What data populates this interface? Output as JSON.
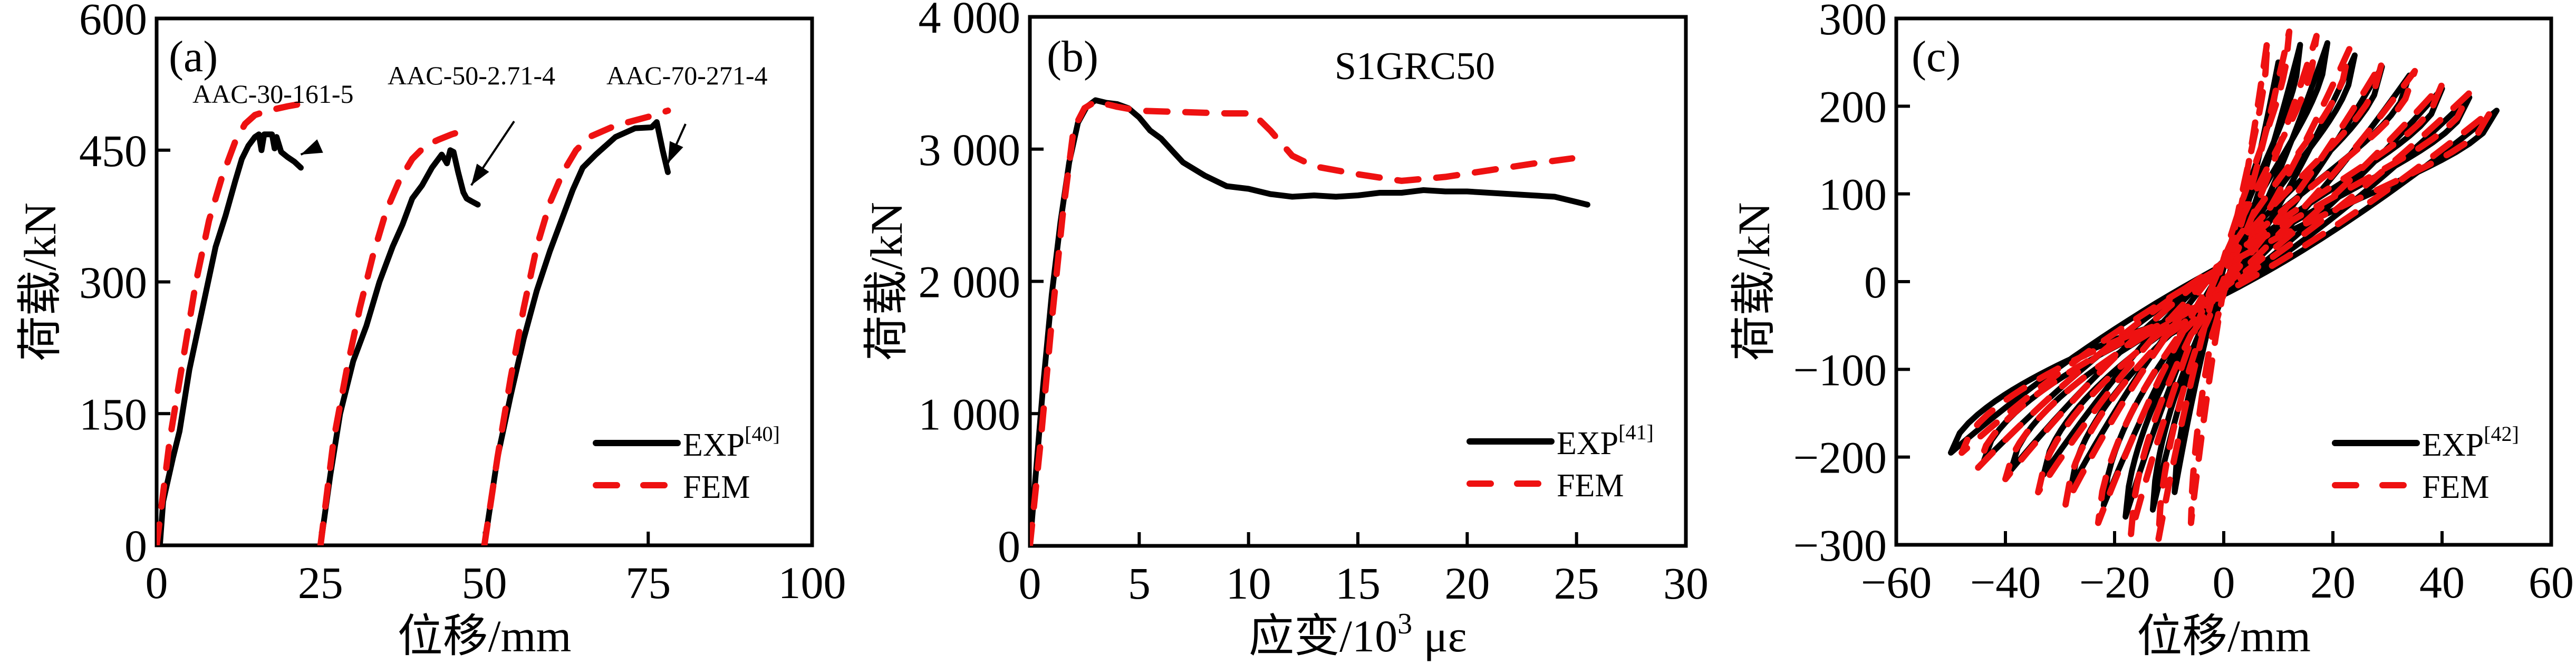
{
  "figure": {
    "panels": [
      "a",
      "b",
      "c"
    ]
  },
  "colors": {
    "exp": "#000000",
    "fem": "#ee1111",
    "axis": "#000000"
  },
  "chart_data": [
    {
      "id": "a",
      "type": "line",
      "panel_tag": "(a)",
      "title": "",
      "xlabel": "位移/mm",
      "ylabel": "荷载/kN",
      "xlim": [
        0,
        100
      ],
      "ylim": [
        0,
        600
      ],
      "xticks": [
        0,
        25,
        50,
        75,
        100
      ],
      "xtick_labels": [
        "0",
        "25",
        "50",
        "75",
        "100"
      ],
      "yticks": [
        0,
        150,
        300,
        450,
        600
      ],
      "ytick_labels": [
        "0",
        "150",
        "300",
        "450",
        "600"
      ],
      "grid": false,
      "legend": {
        "placement": "bottom-right",
        "entries": [
          {
            "label": "EXP",
            "superscript": "[40]",
            "style": "solid"
          },
          {
            "label": "FEM",
            "superscript": "",
            "style": "dashed"
          }
        ]
      },
      "annotations": [
        {
          "text": "AAC-30-161-5",
          "points_to": [
            22,
            445
          ]
        },
        {
          "text": "AAC-50-2.71-4",
          "points_to": [
            48,
            410
          ]
        },
        {
          "text": "AAC-70-271-4",
          "points_to": [
            78,
            435
          ]
        }
      ],
      "series": [
        {
          "name": "EXP",
          "specimen": "AAC-30-161-5",
          "style": "solid",
          "x": [
            0.5,
            1.0,
            2.5,
            3.5,
            5,
            7,
            9,
            10.5,
            12,
            13,
            14,
            15,
            15.6,
            16,
            16.4,
            17,
            17.6,
            18,
            18.3,
            19,
            20,
            21,
            22
          ],
          "y": [
            0,
            50,
            100,
            130,
            200,
            270,
            340,
            375,
            415,
            440,
            455,
            465,
            468,
            450,
            468,
            468,
            468,
            452,
            465,
            448,
            442,
            437,
            430
          ]
        },
        {
          "name": "FEM",
          "specimen": "AAC-30-161-5",
          "style": "dashed",
          "x": [
            0,
            2,
            4,
            6,
            8,
            10,
            12,
            13.5,
            15,
            17,
            20,
            21.5
          ],
          "y": [
            0,
            120,
            210,
            300,
            370,
            420,
            460,
            480,
            490,
            495,
            500,
            502
          ]
        },
        {
          "name": "EXP",
          "specimen": "AAC-50-2.71-4",
          "style": "solid",
          "x": [
            25,
            26.5,
            28,
            30,
            32,
            34,
            36,
            37.5,
            39,
            40.5,
            42,
            43.5,
            44.3,
            44.8,
            45.3,
            46,
            46.8,
            47.3,
            48,
            49
          ],
          "y": [
            0,
            80,
            150,
            210,
            250,
            300,
            340,
            365,
            395,
            410,
            430,
            445,
            435,
            450,
            448,
            425,
            402,
            395,
            392,
            388
          ]
        },
        {
          "name": "FEM",
          "specimen": "AAC-50-2.71-4",
          "style": "dashed",
          "x": [
            25,
            27,
            29,
            31,
            33,
            35,
            37,
            39,
            41,
            43,
            45,
            48
          ],
          "y": [
            0,
            120,
            200,
            270,
            330,
            380,
            415,
            440,
            455,
            462,
            468,
            475
          ]
        },
        {
          "name": "EXP",
          "specimen": "AAC-70-271-4",
          "style": "solid",
          "x": [
            50,
            52,
            54,
            56,
            58,
            60,
            62,
            63.5,
            65,
            67,
            70,
            73,
            75.5,
            76.3,
            77.2,
            78
          ],
          "y": [
            0,
            100,
            170,
            235,
            290,
            335,
            375,
            405,
            430,
            445,
            465,
            475,
            476,
            482,
            450,
            425
          ]
        },
        {
          "name": "FEM",
          "specimen": "AAC-70-271-4",
          "style": "dashed",
          "x": [
            50,
            52,
            54,
            56,
            58,
            60,
            62,
            64,
            66,
            70,
            75,
            78
          ],
          "y": [
            0,
            100,
            190,
            270,
            340,
            390,
            425,
            450,
            465,
            478,
            488,
            495
          ]
        }
      ]
    },
    {
      "id": "b",
      "type": "line",
      "panel_tag": "(b)",
      "title": "S1GRC50",
      "xlabel": "应变/10³ με",
      "xlabel_parts": {
        "main": "应变/10",
        "sup": "3",
        "unit": " με"
      },
      "ylabel": "荷载/kN",
      "xlim": [
        0,
        30
      ],
      "ylim": [
        0,
        4000
      ],
      "xticks": [
        0,
        5,
        10,
        15,
        20,
        25,
        30
      ],
      "xtick_labels": [
        "0",
        "5",
        "10",
        "15",
        "20",
        "25",
        "30"
      ],
      "yticks": [
        0,
        1000,
        2000,
        3000,
        4000
      ],
      "ytick_labels": [
        "0",
        "1 000",
        "2 000",
        "3 000",
        "4 000"
      ],
      "grid": false,
      "legend": {
        "placement": "bottom-right",
        "entries": [
          {
            "label": "EXP",
            "superscript": "[41]",
            "style": "solid"
          },
          {
            "label": "FEM",
            "superscript": "",
            "style": "dashed"
          }
        ]
      },
      "series": [
        {
          "name": "EXP",
          "style": "solid",
          "x": [
            0,
            0.3,
            0.6,
            1.0,
            1.4,
            1.8,
            2.2,
            2.6,
            3.0,
            3.5,
            4.0,
            4.5,
            5.0,
            5.5,
            6.0,
            6.5,
            7.0,
            8.0,
            9.0,
            10.0,
            11.0,
            12.0,
            13.0,
            14.0,
            15.0,
            16.0,
            17.0,
            18.0,
            19.0,
            20.0,
            21.0,
            22.0,
            23.0,
            24.0,
            25.0,
            25.5
          ],
          "y": [
            0,
            600,
            1200,
            1900,
            2450,
            2900,
            3200,
            3320,
            3370,
            3350,
            3340,
            3310,
            3240,
            3140,
            3080,
            2990,
            2900,
            2800,
            2720,
            2700,
            2660,
            2640,
            2650,
            2640,
            2650,
            2670,
            2670,
            2690,
            2680,
            2680,
            2670,
            2660,
            2650,
            2640,
            2600,
            2580
          ]
        },
        {
          "name": "FEM",
          "style": "dashed",
          "x": [
            0,
            0.5,
            1.0,
            1.5,
            2.0,
            2.5,
            3.0,
            4.0,
            5.0,
            7.0,
            9.0,
            10.2,
            11.0,
            12.0,
            13.0,
            15.0,
            17.0,
            19.0,
            21.0,
            23.0,
            24.8
          ],
          "y": [
            0,
            800,
            1700,
            2500,
            3150,
            3310,
            3360,
            3320,
            3290,
            3280,
            3270,
            3270,
            3140,
            2950,
            2870,
            2810,
            2760,
            2790,
            2840,
            2890,
            2930
          ]
        }
      ]
    },
    {
      "id": "c",
      "type": "line",
      "panel_tag": "(c)",
      "title": "",
      "xlabel": "位移/mm",
      "ylabel": "荷载/kN",
      "xlim": [
        -60,
        60
      ],
      "ylim": [
        -300,
        300
      ],
      "xticks": [
        -60,
        -40,
        -20,
        0,
        20,
        40,
        60
      ],
      "xtick_labels": [
        "−60",
        "−40",
        "−20",
        "0",
        "20",
        "40",
        "60"
      ],
      "yticks": [
        -300,
        -200,
        -100,
        0,
        100,
        200,
        300
      ],
      "ytick_labels": [
        "−300",
        "−200",
        "−100",
        "0",
        "100",
        "200",
        "300"
      ],
      "grid": false,
      "legend": {
        "placement": "bottom-right",
        "entries": [
          {
            "label": "EXP",
            "superscript": "[42]",
            "style": "solid"
          },
          {
            "label": "FEM",
            "superscript": "",
            "style": "dashed"
          }
        ]
      },
      "hysteresis": {
        "description": "cyclic load–displacement loops",
        "EXP_cycles": [
          {
            "umax": 10,
            "pmax": 250,
            "umin": -9,
            "pmin": -240
          },
          {
            "umax": 14,
            "pmax": 270,
            "umin": -13,
            "pmin": -260
          },
          {
            "umax": 19,
            "pmax": 272,
            "umin": -18,
            "pmin": -268
          },
          {
            "umax": 24,
            "pmax": 258,
            "umin": -22,
            "pmin": -255
          },
          {
            "umax": 29,
            "pmax": 245,
            "umin": -28,
            "pmin": -235
          },
          {
            "umax": 34,
            "pmax": 235,
            "umin": -33,
            "pmin": -220
          },
          {
            "umax": 40,
            "pmax": 220,
            "umin": -39,
            "pmin": -215
          },
          {
            "umax": 45,
            "pmax": 210,
            "umin": -44,
            "pmin": -205
          },
          {
            "umax": 50,
            "pmax": 195,
            "umin": -50,
            "pmin": -195
          }
        ],
        "FEM_cycles": [
          {
            "umax": 8,
            "pmax": 275,
            "umin": -6,
            "pmin": -275
          },
          {
            "umax": 12,
            "pmax": 285,
            "umin": -12,
            "pmin": -295
          },
          {
            "umax": 17,
            "pmax": 280,
            "umin": -17,
            "pmin": -288
          },
          {
            "umax": 23,
            "pmax": 265,
            "umin": -23,
            "pmin": -275
          },
          {
            "umax": 29,
            "pmax": 250,
            "umin": -29,
            "pmin": -255
          },
          {
            "umax": 35,
            "pmax": 240,
            "umin": -34,
            "pmin": -240
          },
          {
            "umax": 40,
            "pmax": 225,
            "umin": -40,
            "pmin": -225
          },
          {
            "umax": 45,
            "pmax": 215,
            "umin": -45,
            "pmin": -212
          },
          {
            "umax": 49,
            "pmax": 195,
            "umin": -48,
            "pmin": -195
          }
        ]
      }
    }
  ]
}
